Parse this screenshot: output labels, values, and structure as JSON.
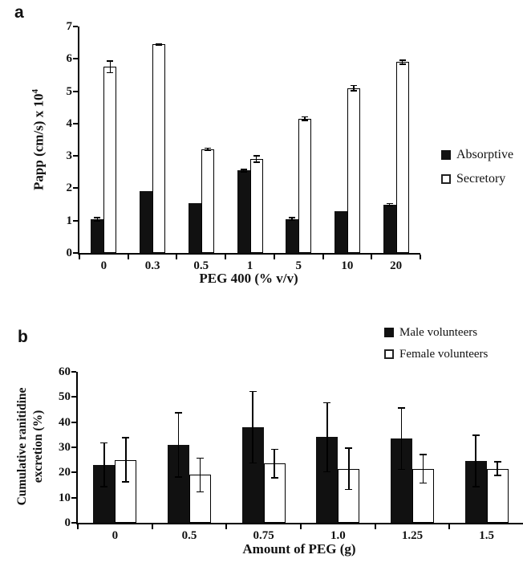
{
  "panels": [
    {
      "label": "a"
    },
    {
      "label": "b"
    }
  ],
  "colors": {
    "bar_filled": "#111111",
    "bar_open": "#ffffff",
    "axis": "#000000"
  },
  "chart_data": [
    {
      "panel": "a",
      "type": "bar",
      "title": "",
      "categories": [
        "0",
        "0.3",
        "0.5",
        "1",
        "5",
        "10",
        "20"
      ],
      "series": [
        {
          "name": "Absorptive",
          "style": "filled",
          "values": [
            1.05,
            1.9,
            1.55,
            2.55,
            1.05,
            1.3,
            1.5
          ],
          "errors": [
            0.07,
            0,
            0,
            0.06,
            0.06,
            0,
            0.05
          ]
        },
        {
          "name": "Secretory",
          "style": "open",
          "values": [
            5.75,
            6.45,
            3.2,
            2.9,
            4.15,
            5.1,
            5.9
          ],
          "errors": [
            0.2,
            0.04,
            0.06,
            0.12,
            0.08,
            0.1,
            0.08
          ]
        }
      ],
      "xlabel": "PEG 400 (% v/v)",
      "ylabel": "Papp (cm/s) x 10",
      "ylabel_sup": "4",
      "ylim": [
        0,
        7
      ],
      "ytick_step": 1,
      "grid": false,
      "legend_position": "right-middle"
    },
    {
      "panel": "b",
      "type": "bar",
      "title": "",
      "categories": [
        "0",
        "0.5",
        "0.75",
        "1.0",
        "1.25",
        "1.5"
      ],
      "series": [
        {
          "name": "Male volunteers",
          "style": "filled",
          "values": [
            23,
            31,
            38,
            34,
            33.5,
            24.5
          ],
          "errors": [
            9,
            13,
            14.5,
            14,
            12.5,
            10.5
          ]
        },
        {
          "name": "Female volunteers",
          "style": "open",
          "values": [
            25,
            19,
            23.5,
            21.5,
            21.5,
            21.5
          ],
          "errors": [
            9,
            7,
            6,
            8.5,
            6,
            3
          ]
        }
      ],
      "xlabel": "Amount of PEG (g)",
      "ylabel_lines": [
        "Cumulative ranitidine",
        "excretion (%)"
      ],
      "ylim": [
        0,
        60
      ],
      "ytick_step": 10,
      "grid": false,
      "legend_position": "top-right"
    }
  ]
}
